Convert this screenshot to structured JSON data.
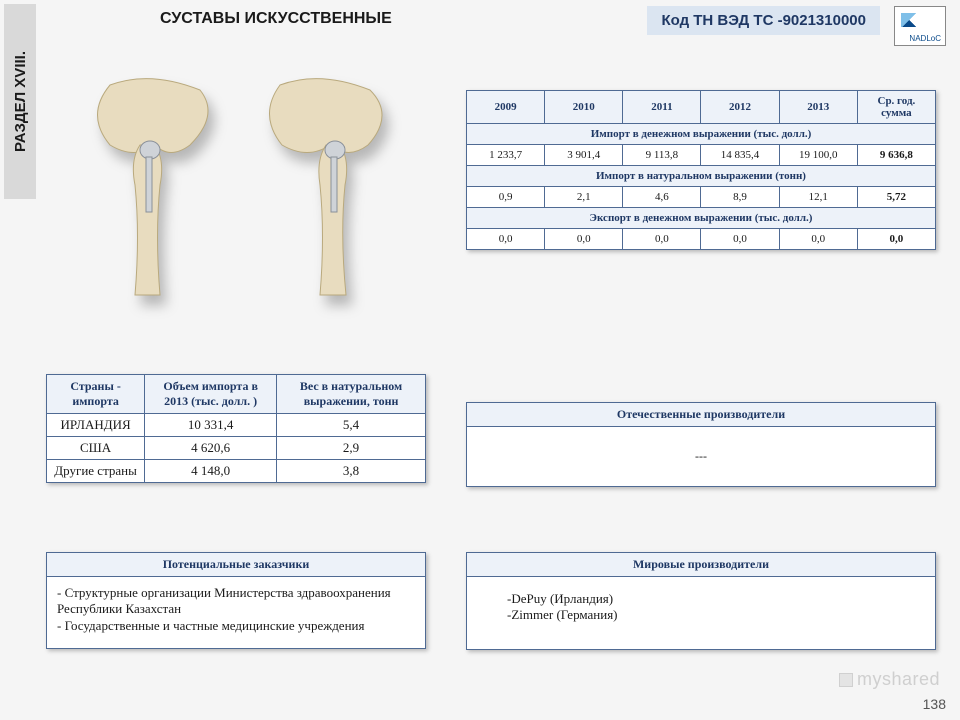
{
  "section_label": "РАЗДЕЛ XVIII.",
  "title": "СУСТАВЫ ИСКУССТВЕННЫЕ",
  "code_label": "Код ТН ВЭД ТС -9021310000",
  "logo_text": "NADLoC",
  "page_number": "138",
  "watermark": "myshared",
  "stats": {
    "headers": [
      "2009",
      "2010",
      "2011",
      "2012",
      "2013",
      "Ср. год. сумма"
    ],
    "rows": [
      {
        "sub": "Импорт в денежном выражении (тыс. долл.)",
        "v": [
          "1 233,7",
          "3 901,4",
          "9 113,8",
          "14 835,4",
          "19 100,0",
          "9 636,8"
        ]
      },
      {
        "sub": "Импорт в натуральном выражении (тонн)",
        "v": [
          "0,9",
          "2,1",
          "4,6",
          "8,9",
          "12,1",
          "5,72"
        ]
      },
      {
        "sub": "Экспорт в денежном выражении (тыс. долл.)",
        "v": [
          "0,0",
          "0,0",
          "0,0",
          "0,0",
          "0,0",
          "0,0"
        ]
      }
    ]
  },
  "countries": {
    "headers": [
      "Страны - импорта",
      "Объем импорта в 2013 (тыс. долл. )",
      "Вес в натуральном выражении, тонн"
    ],
    "rows": [
      [
        "ИРЛАНДИЯ",
        "10 331,4",
        "5,4"
      ],
      [
        "США",
        "4 620,6",
        "2,9"
      ],
      [
        "Другие страны",
        "4 148,0",
        "3,8"
      ]
    ]
  },
  "domestic": {
    "header": "Отечественные производители",
    "body": "---"
  },
  "customers": {
    "header": "Потенциальные заказчики",
    "body": "- Структурные организации Министерства здравоохранения Республики Казахстан\n- Государственные и частные медицинские учреждения"
  },
  "world": {
    "header": "Мировые производители",
    "body": "-DePuy (Ирландия)\n-Zimmer (Германия)"
  }
}
